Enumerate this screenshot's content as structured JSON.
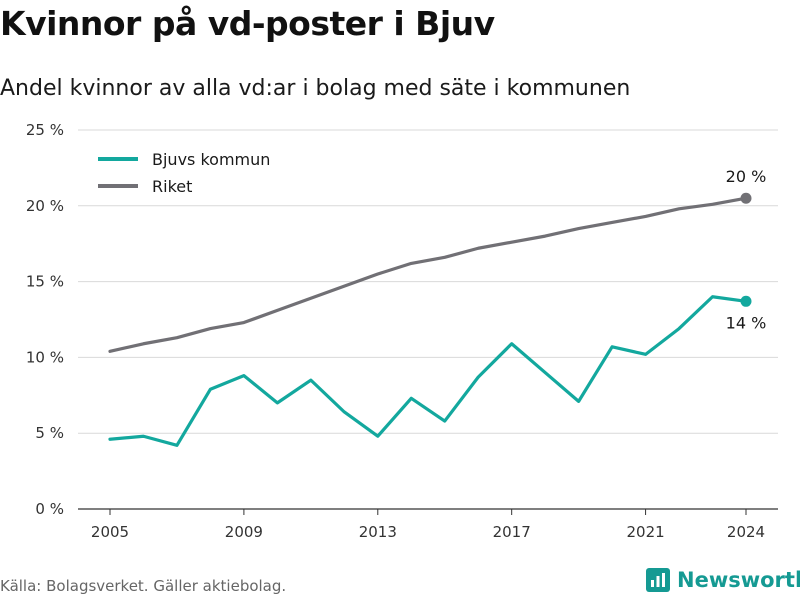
{
  "title": "Kvinnor på vd-poster i Bjuv",
  "subtitle": "Andel kvinnor av alla vd:ar i bolag med säte i kommunen",
  "source": "Källa: Bolagsverket. Gäller aktiebolag.",
  "brand": {
    "name": "Newsworthy",
    "icon": "newsworthy-logo-icon",
    "color": "#159a93"
  },
  "chart_data": {
    "type": "line",
    "x": [
      2005,
      2006,
      2007,
      2008,
      2009,
      2010,
      2011,
      2012,
      2013,
      2014,
      2015,
      2016,
      2017,
      2018,
      2019,
      2020,
      2021,
      2022,
      2023,
      2024
    ],
    "x_ticks": [
      2005,
      2009,
      2013,
      2017,
      2021,
      2024
    ],
    "x_tick_labels": [
      "2005",
      "2009",
      "2013",
      "2017",
      "2021",
      "2024"
    ],
    "ylim": [
      0,
      25
    ],
    "y_ticks": [
      0,
      5,
      10,
      15,
      20,
      25
    ],
    "y_tick_labels": [
      "0 %",
      "5 %",
      "10 %",
      "15 %",
      "20 %",
      "25 %"
    ],
    "grid": true,
    "legend_position": "top-left",
    "series": [
      {
        "name": "Bjuvs kommun",
        "color": "#13a89e",
        "values": [
          4.6,
          4.8,
          4.2,
          7.9,
          8.8,
          7.0,
          8.5,
          6.4,
          4.8,
          7.3,
          5.8,
          8.7,
          10.9,
          9.0,
          7.1,
          10.7,
          10.2,
          11.9,
          14.0,
          13.7
        ],
        "end_label": "14 %"
      },
      {
        "name": "Riket",
        "color": "#717075",
        "values": [
          10.4,
          10.9,
          11.3,
          11.9,
          12.3,
          13.1,
          13.9,
          14.7,
          15.5,
          16.2,
          16.6,
          17.2,
          17.6,
          18.0,
          18.5,
          18.9,
          19.3,
          19.8,
          20.1,
          20.5
        ],
        "end_label": "20 %"
      }
    ]
  }
}
